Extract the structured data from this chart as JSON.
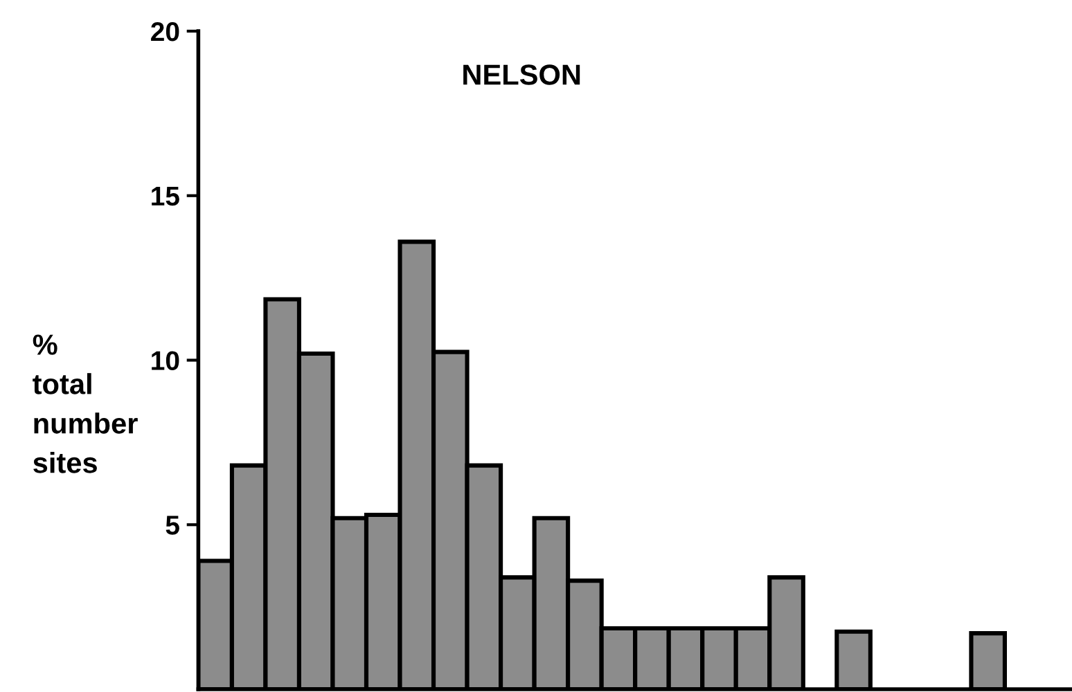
{
  "chart_data": {
    "type": "bar",
    "title": "NELSON",
    "ylabel": "%\ntotal\nnumber\nsites",
    "categories": [
      null,
      null,
      null,
      null,
      null,
      null,
      null,
      null,
      null,
      null,
      null,
      null,
      null,
      null,
      null,
      null,
      null,
      null,
      null,
      null,
      null,
      null,
      null,
      null,
      null,
      null
    ],
    "values": [
      3.9,
      6.8,
      11.85,
      10.2,
      5.2,
      5.3,
      13.6,
      10.25,
      6.8,
      3.4,
      5.2,
      3.3,
      1.85,
      1.85,
      1.85,
      1.85,
      1.85,
      3.4,
      0,
      1.75,
      0,
      0,
      0,
      1.7,
      0,
      0
    ],
    "color": "#8c8c8c",
    "ylim": [
      0,
      20
    ],
    "yticks": [
      5,
      10,
      15,
      20
    ],
    "tick_labels": "y",
    "grid": false
  }
}
